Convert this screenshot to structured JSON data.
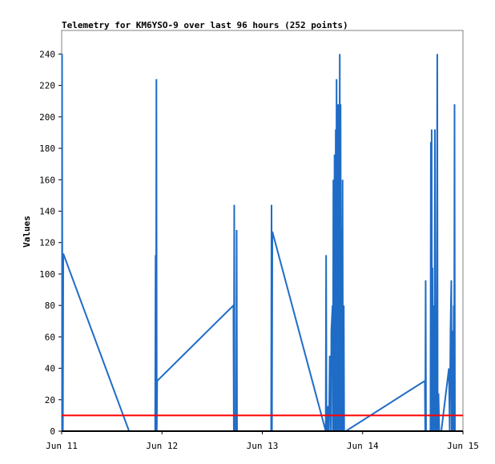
{
  "chart_data": {
    "type": "line",
    "title": "Telemetry for KM6YSO-9 over last 96 hours (252 points)",
    "xlabel": "",
    "ylabel": "Values",
    "ylim": [
      0,
      255
    ],
    "xlim": [
      "2024-06-11 00:00",
      "2024-06-15 00:00"
    ],
    "x_ticks": [
      "Jun 11",
      "Jun 12",
      "Jun 13",
      "Jun 14",
      "Jun 15"
    ],
    "y_ticks": [
      0,
      20,
      40,
      60,
      80,
      100,
      120,
      140,
      160,
      180,
      200,
      220,
      240
    ],
    "grid": false,
    "legend": "none",
    "colors": {
      "series_line": "#1f6cc7",
      "threshold_line": "#ff0000",
      "baseline": "#000000",
      "frame": "#808080"
    },
    "series": [
      {
        "values": [
          [
            0.01,
            0
          ],
          [
            0.01,
            240
          ],
          [
            0.02,
            0
          ],
          [
            0.03,
            0
          ],
          [
            0.04,
            113
          ],
          [
            1.68,
            0
          ],
          [
            2.33,
            0
          ],
          [
            2.34,
            112
          ],
          [
            2.35,
            0
          ],
          [
            2.36,
            224
          ],
          [
            2.37,
            0
          ],
          [
            2.38,
            32
          ],
          [
            4.28,
            80
          ],
          [
            4.29,
            0
          ],
          [
            4.3,
            144
          ],
          [
            4.31,
            0
          ],
          [
            4.35,
            0
          ],
          [
            4.36,
            128
          ],
          [
            4.37,
            0
          ],
          [
            5.22,
            0
          ],
          [
            5.23,
            144
          ],
          [
            5.24,
            0
          ],
          [
            5.25,
            127
          ],
          [
            6.58,
            0
          ],
          [
            6.59,
            112
          ],
          [
            6.6,
            0
          ],
          [
            6.63,
            0
          ],
          [
            6.64,
            16
          ],
          [
            6.66,
            0
          ],
          [
            6.68,
            48
          ],
          [
            6.71,
            0
          ],
          [
            6.72,
            64
          ],
          [
            6.75,
            80
          ],
          [
            6.76,
            0
          ],
          [
            6.77,
            160
          ],
          [
            6.79,
            0
          ],
          [
            6.8,
            176
          ],
          [
            6.81,
            0
          ],
          [
            6.83,
            192
          ],
          [
            6.84,
            0
          ],
          [
            6.85,
            224
          ],
          [
            6.86,
            0
          ],
          [
            6.87,
            208
          ],
          [
            6.88,
            104
          ],
          [
            6.89,
            208
          ],
          [
            6.9,
            0
          ],
          [
            6.91,
            208
          ],
          [
            6.92,
            96
          ],
          [
            6.93,
            240
          ],
          [
            6.94,
            0
          ],
          [
            6.95,
            208
          ],
          [
            6.96,
            40
          ],
          [
            6.97,
            128
          ],
          [
            6.98,
            0
          ],
          [
            7.0,
            160
          ],
          [
            7.01,
            0
          ],
          [
            7.03,
            80
          ],
          [
            7.04,
            0
          ],
          [
            7.06,
            0
          ],
          [
            7.08,
            0
          ],
          [
            9.05,
            32
          ],
          [
            9.06,
            0
          ],
          [
            9.07,
            96
          ],
          [
            9.08,
            0
          ],
          [
            9.19,
            0
          ],
          [
            9.2,
            184
          ],
          [
            9.21,
            0
          ],
          [
            9.22,
            192
          ],
          [
            9.23,
            0
          ],
          [
            9.24,
            104
          ],
          [
            9.25,
            0
          ],
          [
            9.26,
            80
          ],
          [
            9.27,
            0
          ],
          [
            9.28,
            56
          ],
          [
            9.29,
            0
          ],
          [
            9.3,
            192
          ],
          [
            9.31,
            0
          ],
          [
            9.32,
            32
          ],
          [
            9.34,
            0
          ],
          [
            9.36,
            240
          ],
          [
            9.37,
            0
          ],
          [
            9.38,
            0
          ],
          [
            9.39,
            24
          ],
          [
            9.41,
            0
          ],
          [
            9.44,
            0
          ],
          [
            9.46,
            0
          ],
          [
            9.65,
            40
          ],
          [
            9.67,
            0
          ],
          [
            9.69,
            64
          ],
          [
            9.71,
            96
          ],
          [
            9.72,
            0
          ],
          [
            9.73,
            64
          ],
          [
            9.74,
            0
          ],
          [
            9.76,
            0
          ],
          [
            9.77,
            80
          ],
          [
            9.78,
            0
          ],
          [
            9.79,
            208
          ],
          [
            9.8,
            0
          ]
        ]
      },
      {
        "values": [
          [
            0,
            10
          ],
          [
            10,
            10
          ]
        ]
      }
    ]
  }
}
